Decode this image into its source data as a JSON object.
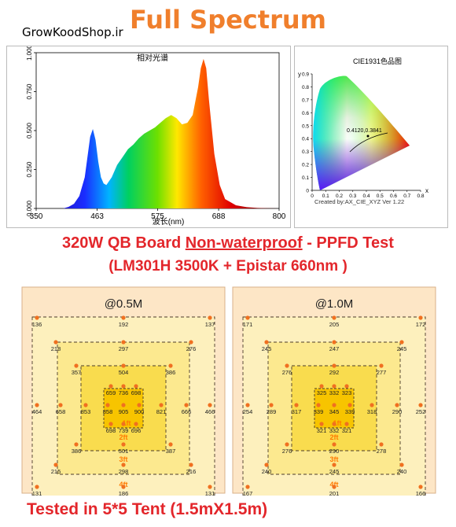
{
  "header": {
    "title": "Full Spectrum",
    "shop": "GrowKoodShop.ir"
  },
  "spectrum": {
    "title": "相对光谱",
    "xlabel": "波长(nm)",
    "x_ticks": [
      "350",
      "463",
      "575",
      "688",
      "800"
    ],
    "y_ticks": [
      "0.000",
      "0.250",
      "0.500",
      "0.750",
      "1.000"
    ]
  },
  "cie": {
    "title": "CIE1931色品图",
    "y_axis": "y",
    "x_axis": "x",
    "coord": "0.4120,0.3841",
    "credit": "Created by:AX_CIE_XYZ Ver 1.22",
    "x_ticks": [
      "0",
      "0.1",
      "0.2",
      "0.3",
      "0.4",
      "0.5",
      "0.6",
      "0.7",
      "0.8"
    ],
    "y_ticks": [
      "0.9",
      "0.8",
      "0.7",
      "0.6",
      "0.5",
      "0.4",
      "0.3",
      "0.2",
      "0.1",
      "0"
    ]
  },
  "headline": {
    "line1_a": "320W QB Board ",
    "line1_b": "Non-waterproof",
    "line1_c": " - PPFD Test",
    "line2": "(LM301H 3500K + Epistar 660nm )"
  },
  "footer": "Tested in 5*5 Tent (1.5mX1.5m)",
  "chart_data": [
    {
      "type": "area",
      "title": "相对光谱",
      "xlabel": "波长(nm)",
      "ylabel": "",
      "xlim": [
        350,
        800
      ],
      "ylim": [
        0,
        1
      ],
      "x": [
        350,
        400,
        410,
        420,
        430,
        440,
        450,
        455,
        460,
        465,
        470,
        475,
        480,
        490,
        500,
        510,
        520,
        530,
        540,
        550,
        560,
        570,
        580,
        590,
        600,
        610,
        620,
        630,
        640,
        650,
        655,
        660,
        665,
        670,
        680,
        690,
        700,
        720,
        740,
        760,
        780,
        800
      ],
      "y": [
        0,
        0,
        0.01,
        0.03,
        0.08,
        0.2,
        0.46,
        0.51,
        0.44,
        0.3,
        0.2,
        0.16,
        0.15,
        0.2,
        0.28,
        0.33,
        0.38,
        0.41,
        0.45,
        0.48,
        0.5,
        0.52,
        0.55,
        0.58,
        0.6,
        0.58,
        0.54,
        0.55,
        0.6,
        0.78,
        0.9,
        0.96,
        0.9,
        0.7,
        0.35,
        0.15,
        0.06,
        0.02,
        0.008,
        0.003,
        0.001,
        0
      ]
    },
    {
      "type": "heatmap",
      "title": "@0.5M",
      "rings": [
        "1ft",
        "2ft",
        "3ft",
        "4ft"
      ],
      "grid": [
        [
          136,
          null,
          192,
          null,
          137
        ],
        [
          218,
          null,
          297,
          null,
          276
        ],
        [
          357,
          null,
          504,
          null,
          386
        ],
        [
          null,
          659,
          736,
          698,
          null
        ],
        [
          464,
          658,
          853,
          858,
          905,
          900,
          821,
          666,
          466
        ],
        [
          null,
          698,
          739,
          696,
          null
        ],
        [
          386,
          null,
          501,
          null,
          387
        ],
        [
          215,
          null,
          298,
          null,
          216
        ],
        [
          131,
          null,
          186,
          null,
          131
        ]
      ]
    },
    {
      "type": "heatmap",
      "title": "@1.0M",
      "rings": [
        "1ft",
        "2ft",
        "3ft",
        "4ft"
      ],
      "grid": [
        [
          171,
          null,
          205,
          null,
          172
        ],
        [
          245,
          null,
          247,
          null,
          245
        ],
        [
          276,
          null,
          292,
          null,
          277
        ],
        [
          null,
          325,
          332,
          323,
          null
        ],
        [
          254,
          289,
          317,
          339,
          345,
          339,
          318,
          290,
          252
        ],
        [
          null,
          321,
          332,
          321,
          null
        ],
        [
          276,
          null,
          290,
          null,
          278
        ],
        [
          240,
          null,
          245,
          null,
          240
        ],
        [
          167,
          null,
          201,
          null,
          166
        ]
      ]
    }
  ],
  "colors": {
    "accent_orange": "#f07f2c",
    "accent_red": "#e3262b"
  }
}
